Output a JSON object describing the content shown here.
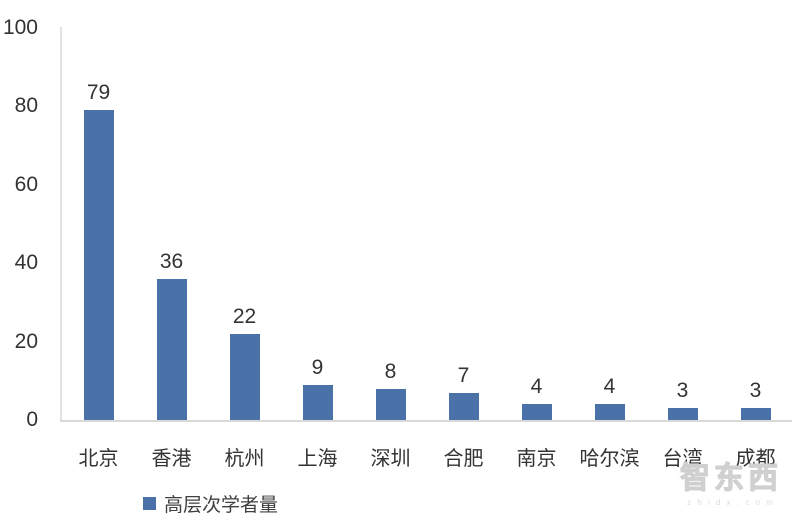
{
  "chart_data": {
    "type": "bar",
    "title": "",
    "xlabel": "",
    "ylabel": "",
    "categories": [
      "北京",
      "香港",
      "杭州",
      "上海",
      "深圳",
      "合肥",
      "南京",
      "哈尔滨",
      "台湾",
      "成都"
    ],
    "series": [
      {
        "name": "高层次学者量",
        "values": [
          79,
          36,
          22,
          9,
          8,
          7,
          4,
          4,
          3,
          3
        ]
      }
    ],
    "values": [
      79,
      36,
      22,
      9,
      8,
      7,
      4,
      4,
      3,
      3
    ],
    "value_labels_shown": true,
    "ylim": [
      0,
      100
    ],
    "yticks": [
      100,
      80,
      60,
      40,
      20,
      0
    ],
    "grid": false,
    "legend": {
      "label": "高层次学者量",
      "position": "bottom-left"
    },
    "colors": {
      "bar": "#4a72a8",
      "axis_line": "#d9d9d9",
      "tick_text": "#333333",
      "legend_text": "#404040"
    }
  },
  "watermark": {
    "brand": "智东西",
    "domain_text": "z h i d x . c o m"
  }
}
